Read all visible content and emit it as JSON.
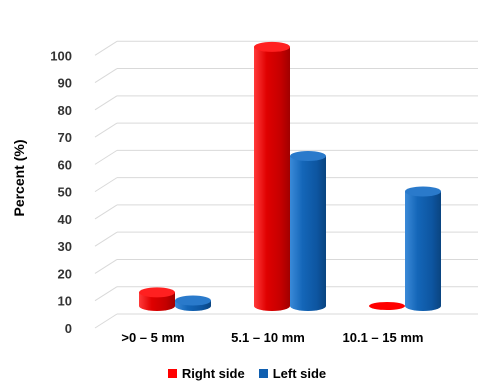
{
  "chart_data": {
    "type": "bar",
    "title": "",
    "xlabel": "",
    "ylabel": "Percent (%)",
    "categories": [
      ">0 – 5 mm",
      "5.1 – 10 mm",
      "10.1 – 15 mm"
    ],
    "yticks": [
      "0",
      "10",
      "20",
      "30",
      "40",
      "50",
      "60",
      "70",
      "80",
      "90",
      "100"
    ],
    "ylim": [
      0,
      110
    ],
    "grid": true,
    "style": "3d-cylinder",
    "legend_position": "bottom",
    "series": [
      {
        "name": "Right side",
        "color": "#ff0000",
        "values": [
          5,
          95,
          0
        ]
      },
      {
        "name": "Left side",
        "color": "#0f5fb0",
        "values": [
          2,
          55,
          42
        ]
      }
    ]
  }
}
